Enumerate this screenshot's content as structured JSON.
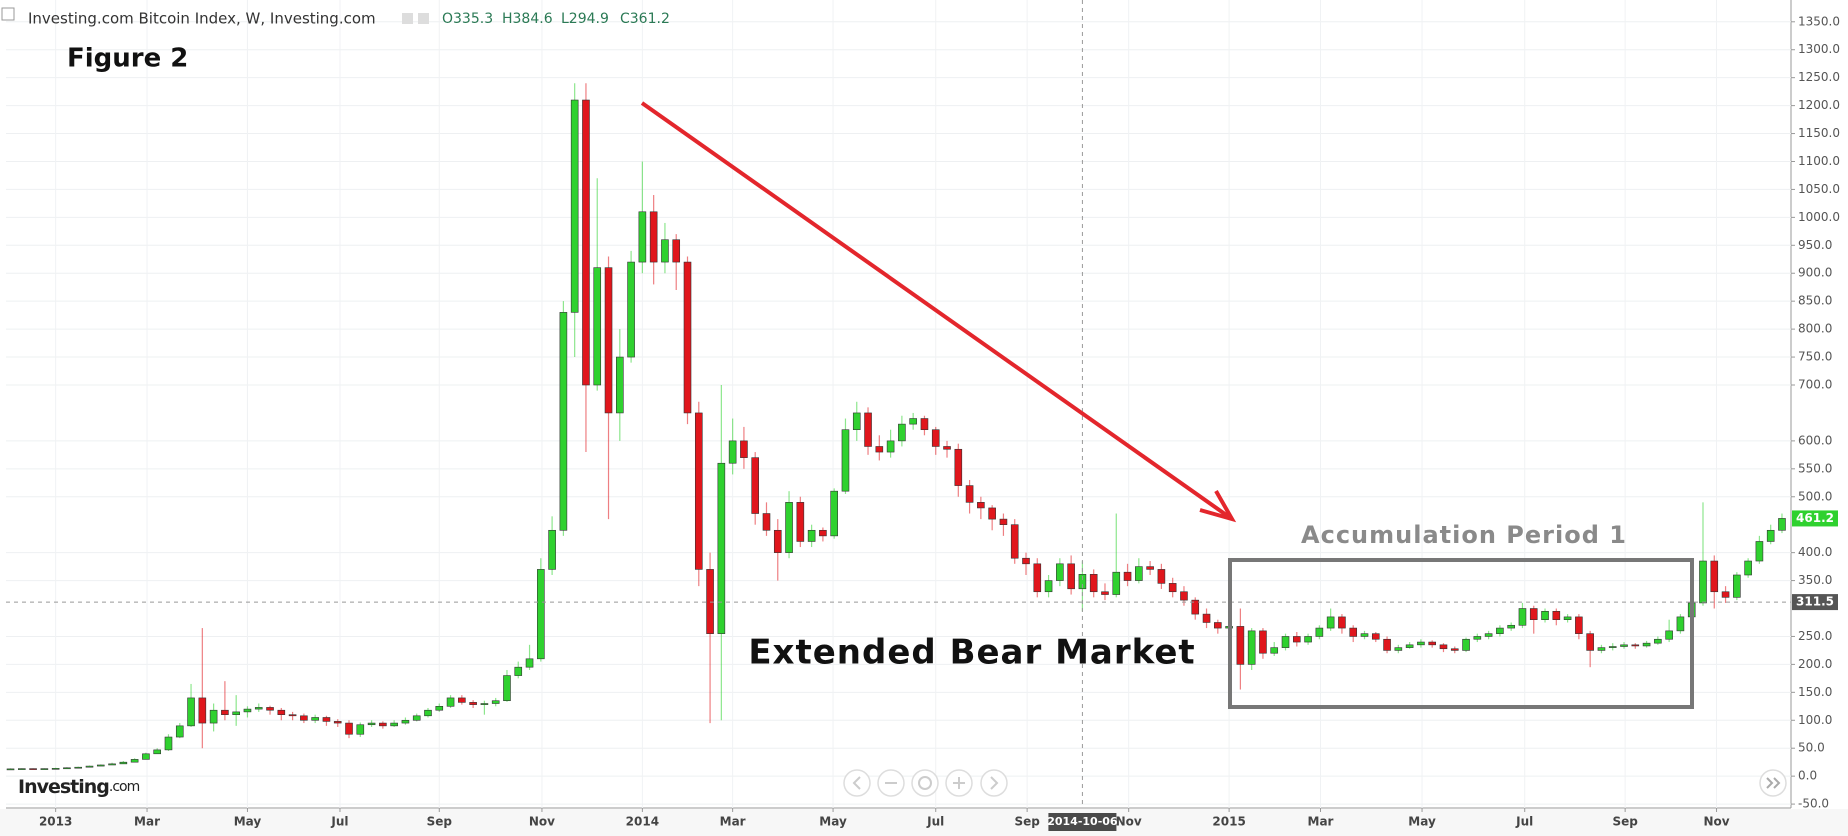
{
  "chart_data": {
    "type": "candlestick",
    "title": "Investing.com Bitcoin Index, W, Investing.com",
    "ohlc_readout": [
      {
        "value": 335.3,
        "label": "O335.3"
      },
      {
        "value": 384.6,
        "label": "H384.6"
      },
      {
        "value": 294.9,
        "label": "L294.9"
      },
      {
        "value": 361.2,
        "label": "C361.2"
      }
    ],
    "annotations": [
      "Figure 2",
      "Extended Bear Market",
      "Accumulation Period 1"
    ],
    "brand": [
      "Investing",
      ".com"
    ],
    "up_color": "#2fd12f",
    "down_color": "#e0161c",
    "grid": true,
    "open": [
      13,
      13,
      13.5,
      13.4,
      13.5,
      14,
      15,
      16,
      18,
      20,
      22,
      25,
      30,
      40,
      47,
      70,
      90,
      140,
      95,
      118,
      110,
      115,
      120,
      123,
      118,
      110,
      108,
      100,
      105,
      98,
      95,
      75,
      92,
      95,
      90,
      95,
      100,
      108,
      118,
      125,
      140,
      132,
      128,
      130,
      135,
      180,
      195,
      210,
      370,
      440,
      830,
      1210,
      700,
      910,
      650,
      750,
      920,
      1010,
      920,
      960,
      920,
      650,
      370,
      255,
      560,
      600,
      570,
      470,
      440,
      400,
      490,
      420,
      440,
      430,
      510,
      620,
      650,
      590,
      580,
      600,
      630,
      640,
      620,
      590,
      585,
      520,
      490,
      480,
      460,
      450,
      390,
      380,
      330,
      350,
      380,
      335.3,
      361.2,
      330,
      325,
      365,
      350,
      375,
      370,
      345,
      330,
      315,
      290,
      275,
      265,
      268,
      200,
      260,
      220,
      230,
      250,
      240,
      250,
      265,
      285,
      265,
      250,
      255,
      245,
      225,
      230,
      235,
      240,
      235,
      228,
      225,
      245,
      250,
      255,
      265,
      270,
      300,
      280,
      295,
      280,
      285,
      255,
      225,
      230,
      232,
      235,
      233,
      238,
      245,
      260,
      285,
      310,
      385,
      330,
      320,
      360,
      385,
      420,
      440
    ],
    "high": [
      14,
      14,
      14,
      14,
      15,
      16,
      17,
      19,
      21,
      24,
      27,
      32,
      42,
      50,
      75,
      95,
      165,
      265,
      130,
      170,
      145,
      125,
      130,
      126,
      122,
      115,
      112,
      110,
      108,
      102,
      100,
      96,
      100,
      98,
      100,
      105,
      112,
      122,
      130,
      145,
      145,
      136,
      135,
      140,
      190,
      205,
      235,
      390,
      465,
      850,
      1240,
      1240,
      1070,
      930,
      800,
      940,
      1100,
      1040,
      990,
      970,
      930,
      670,
      400,
      700,
      640,
      625,
      580,
      490,
      460,
      510,
      500,
      450,
      445,
      515,
      640,
      670,
      660,
      610,
      620,
      645,
      650,
      645,
      625,
      600,
      595,
      530,
      500,
      485,
      470,
      460,
      400,
      390,
      360,
      390,
      395,
      384.6,
      370,
      345,
      470,
      380,
      390,
      385,
      380,
      355,
      340,
      320,
      300,
      280,
      310,
      300,
      265,
      265,
      240,
      255,
      258,
      255,
      270,
      300,
      290,
      270,
      260,
      258,
      250,
      235,
      240,
      245,
      243,
      238,
      232,
      248,
      255,
      260,
      270,
      275,
      310,
      305,
      300,
      300,
      290,
      290,
      260,
      235,
      238,
      240,
      238,
      242,
      250,
      280,
      290,
      320,
      490,
      395,
      340,
      365,
      390,
      430,
      450,
      470
    ],
    "low": [
      12,
      12.5,
      13,
      13,
      13,
      14,
      15,
      16,
      18,
      20,
      22,
      25,
      30,
      40,
      45,
      68,
      88,
      50,
      80,
      100,
      90,
      105,
      115,
      110,
      100,
      100,
      95,
      95,
      90,
      88,
      68,
      70,
      88,
      85,
      88,
      92,
      98,
      105,
      115,
      122,
      128,
      122,
      110,
      125,
      133,
      175,
      190,
      205,
      360,
      430,
      750,
      580,
      690,
      460,
      600,
      740,
      900,
      880,
      900,
      870,
      630,
      340,
      95,
      100,
      540,
      550,
      450,
      430,
      350,
      390,
      410,
      410,
      420,
      425,
      505,
      600,
      575,
      565,
      570,
      590,
      620,
      610,
      575,
      570,
      500,
      470,
      460,
      440,
      430,
      380,
      360,
      320,
      320,
      340,
      325,
      294.9,
      320,
      315,
      320,
      340,
      345,
      360,
      335,
      320,
      305,
      280,
      265,
      255,
      250,
      155,
      190,
      210,
      215,
      225,
      232,
      235,
      245,
      260,
      255,
      240,
      245,
      240,
      220,
      220,
      228,
      230,
      230,
      222,
      220,
      222,
      240,
      245,
      250,
      260,
      265,
      255,
      275,
      270,
      275,
      245,
      195,
      220,
      225,
      228,
      228,
      230,
      235,
      240,
      255,
      280,
      305,
      300,
      310,
      315,
      355,
      380,
      415,
      435
    ],
    "close": [
      13,
      13.5,
      13.4,
      13.5,
      14,
      15,
      16,
      18,
      20,
      22,
      25,
      30,
      40,
      47,
      70,
      90,
      140,
      95,
      118,
      110,
      115,
      120,
      123,
      118,
      110,
      108,
      100,
      105,
      98,
      95,
      75,
      92,
      95,
      90,
      95,
      100,
      108,
      118,
      125,
      140,
      132,
      128,
      130,
      135,
      180,
      195,
      210,
      370,
      440,
      830,
      1210,
      700,
      910,
      650,
      750,
      920,
      1010,
      920,
      960,
      920,
      650,
      370,
      255,
      560,
      600,
      570,
      470,
      440,
      400,
      490,
      420,
      440,
      430,
      510,
      620,
      650,
      590,
      580,
      600,
      630,
      640,
      620,
      590,
      585,
      520,
      490,
      480,
      460,
      450,
      390,
      380,
      330,
      350,
      380,
      335.3,
      361.2,
      330,
      325,
      365,
      350,
      375,
      370,
      345,
      330,
      315,
      290,
      275,
      265,
      268,
      200,
      260,
      220,
      230,
      250,
      240,
      250,
      265,
      285,
      265,
      250,
      255,
      245,
      225,
      230,
      235,
      240,
      235,
      228,
      225,
      245,
      250,
      255,
      265,
      270,
      300,
      280,
      295,
      280,
      285,
      255,
      225,
      230,
      232,
      235,
      233,
      238,
      245,
      260,
      285,
      310,
      385,
      330,
      320,
      360,
      385,
      420,
      440,
      461.2
    ],
    "xlim": [
      -0.4,
      157.8
    ],
    "xticks": [
      {
        "value": 4,
        "label": "2013"
      },
      {
        "value": 12.1,
        "label": "Mar"
      },
      {
        "value": 21,
        "label": "May"
      },
      {
        "value": 29.2,
        "label": "Jul"
      },
      {
        "value": 38,
        "label": "Sep"
      },
      {
        "value": 47.1,
        "label": "Nov"
      },
      {
        "value": 56,
        "label": "2014"
      },
      {
        "value": 64,
        "label": "Mar"
      },
      {
        "value": 72.9,
        "label": "May"
      },
      {
        "value": 82,
        "label": "Jul"
      },
      {
        "value": 90.1,
        "label": "Sep"
      },
      {
        "value": 99.1,
        "label": "Nov"
      },
      {
        "value": 108,
        "label": "2015"
      },
      {
        "value": 116.1,
        "label": "Mar"
      },
      {
        "value": 125.1,
        "label": "May"
      },
      {
        "value": 134.2,
        "label": "Jul"
      },
      {
        "value": 143.1,
        "label": "Sep"
      },
      {
        "value": 151.2,
        "label": "Nov"
      }
    ],
    "ylim": [
      -57,
      1389
    ],
    "yticks": [
      {
        "value": -50,
        "label": "-50.0"
      },
      {
        "value": 0,
        "label": "0.0"
      },
      {
        "value": 50,
        "label": "50.0"
      },
      {
        "value": 100,
        "label": "100.0"
      },
      {
        "value": 150,
        "label": "150.0"
      },
      {
        "value": 200,
        "label": "200.0"
      },
      {
        "value": 250,
        "label": "250.0"
      },
      {
        "value": 350,
        "label": "350.0"
      },
      {
        "value": 400,
        "label": "400.0"
      },
      {
        "value": 500,
        "label": "500.0"
      },
      {
        "value": 550,
        "label": "550.0"
      },
      {
        "value": 600,
        "label": "600.0"
      },
      {
        "value": 700,
        "label": "700.0"
      },
      {
        "value": 750,
        "label": "750.0"
      },
      {
        "value": 800,
        "label": "800.0"
      },
      {
        "value": 850,
        "label": "850.0"
      },
      {
        "value": 900,
        "label": "900.0"
      },
      {
        "value": 950,
        "label": "950.0"
      },
      {
        "value": 1000,
        "label": "1000.0"
      },
      {
        "value": 1050,
        "label": "1050.0"
      },
      {
        "value": 1100,
        "label": "1100.0"
      },
      {
        "value": 1150,
        "label": "1150.0"
      },
      {
        "value": 1200,
        "label": "1200.0"
      },
      {
        "value": 1250,
        "label": "1250.0"
      },
      {
        "value": 1300,
        "label": "1300.0"
      },
      {
        "value": 1350,
        "label": "1350.0"
      }
    ],
    "crosshair_price": 311.5,
    "crosshair_x": {
      "value": 95,
      "label": "2014-10-06"
    },
    "last_price": 461.2
  }
}
